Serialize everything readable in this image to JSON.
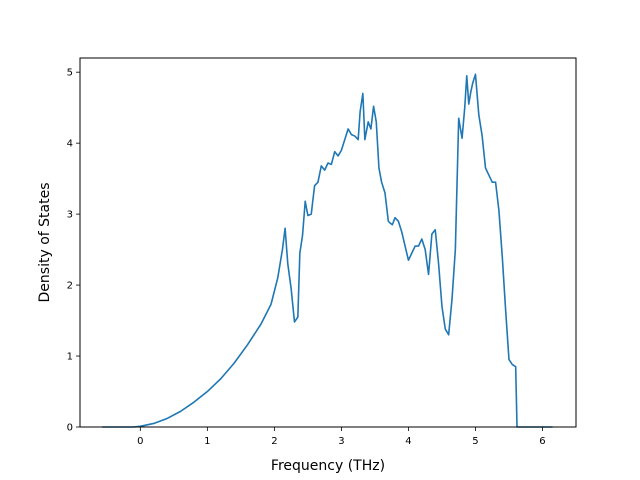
{
  "chart_data": {
    "type": "line",
    "title": "",
    "xlabel": "Frequency (THz)",
    "ylabel": "Density of States",
    "xlim": [
      -0.9,
      6.5
    ],
    "ylim": [
      0,
      5.2
    ],
    "xticks": [
      0,
      1,
      2,
      3,
      4,
      5,
      6
    ],
    "yticks": [
      0,
      1,
      2,
      3,
      4,
      5
    ],
    "grid": false,
    "legend": "none",
    "series": [
      {
        "color": "#1f77b4",
        "x": [
          -0.57,
          -0.1,
          0.0,
          0.2,
          0.4,
          0.6,
          0.8,
          1.0,
          1.2,
          1.4,
          1.6,
          1.8,
          1.95,
          2.05,
          2.12,
          2.16,
          2.2,
          2.25,
          2.3,
          2.35,
          2.38,
          2.42,
          2.46,
          2.5,
          2.55,
          2.6,
          2.65,
          2.7,
          2.75,
          2.8,
          2.85,
          2.9,
          2.95,
          3.0,
          3.05,
          3.1,
          3.15,
          3.2,
          3.25,
          3.28,
          3.32,
          3.35,
          3.4,
          3.44,
          3.48,
          3.52,
          3.56,
          3.6,
          3.65,
          3.7,
          3.72,
          3.76,
          3.8,
          3.85,
          3.9,
          3.95,
          4.0,
          4.05,
          4.1,
          4.15,
          4.2,
          4.25,
          4.3,
          4.35,
          4.4,
          4.45,
          4.5,
          4.55,
          4.6,
          4.65,
          4.7,
          4.75,
          4.8,
          4.84,
          4.87,
          4.9,
          4.93,
          4.96,
          5.0,
          5.05,
          5.1,
          5.15,
          5.2,
          5.25,
          5.3,
          5.35,
          5.4,
          5.45,
          5.5,
          5.55,
          5.6,
          5.62,
          6.15
        ],
        "y": [
          0.0,
          0.0,
          0.01,
          0.05,
          0.12,
          0.22,
          0.35,
          0.5,
          0.68,
          0.9,
          1.16,
          1.45,
          1.73,
          2.1,
          2.5,
          2.8,
          2.3,
          1.95,
          1.48,
          1.55,
          2.45,
          2.7,
          3.18,
          2.98,
          3.0,
          3.4,
          3.45,
          3.68,
          3.62,
          3.72,
          3.7,
          3.88,
          3.82,
          3.9,
          4.05,
          4.2,
          4.12,
          4.1,
          4.05,
          4.45,
          4.7,
          4.05,
          4.3,
          4.2,
          4.52,
          4.3,
          3.65,
          3.45,
          3.3,
          2.9,
          2.88,
          2.85,
          2.95,
          2.9,
          2.75,
          2.55,
          2.35,
          2.45,
          2.55,
          2.55,
          2.65,
          2.5,
          2.15,
          2.72,
          2.78,
          2.3,
          1.7,
          1.38,
          1.3,
          1.8,
          2.5,
          4.35,
          4.07,
          4.5,
          4.95,
          4.55,
          4.72,
          4.85,
          4.97,
          4.4,
          4.1,
          3.65,
          3.55,
          3.45,
          3.45,
          3.05,
          2.4,
          1.65,
          0.95,
          0.88,
          0.85,
          0.0,
          0.0
        ]
      }
    ]
  }
}
